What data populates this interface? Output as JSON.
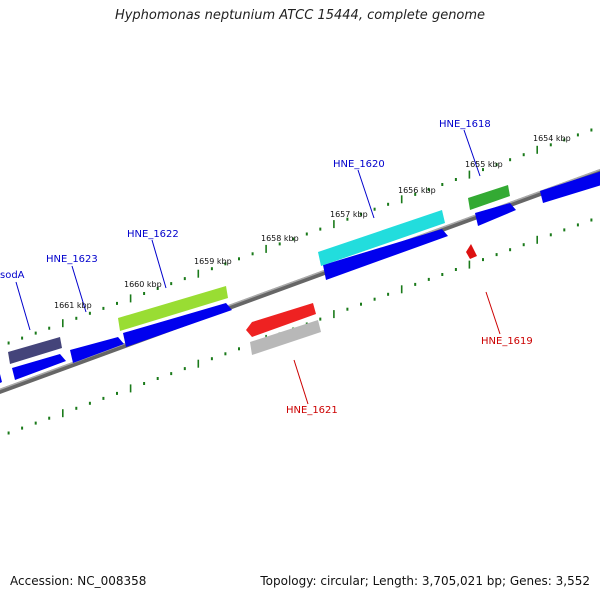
{
  "title": "Hyphomonas neptunium ATCC 15444, complete genome",
  "footer": {
    "accession": "Accession: NC_008358",
    "stats": "Topology: circular; Length: 3,705,021 bp; Genes: 3,552"
  },
  "colors": {
    "backbone": "#808080",
    "scale_ticks": "#1a7a1a",
    "cds": "#0000ee",
    "fwd_label": "#0000cc",
    "rev_label": "#cc0000"
  },
  "scale_labels": [
    {
      "text": "1661 kbp"
    },
    {
      "text": "1660 kbp"
    },
    {
      "text": "1659 kbp"
    },
    {
      "text": "1658 kbp"
    },
    {
      "text": "1657 kbp"
    },
    {
      "text": "1656 kbp"
    },
    {
      "text": "1655 kbp"
    },
    {
      "text": "1654 kbp"
    }
  ],
  "genes_forward": [
    {
      "name": "sodA",
      "color": "#44447a"
    },
    {
      "name": "HNE_1623",
      "color": "#0000ee"
    },
    {
      "name": "HNE_1622",
      "color": "#99dd33"
    },
    {
      "name": "HNE_1620",
      "color": "#22dddd"
    },
    {
      "name": "HNE_1618",
      "color": "#33aa33"
    }
  ],
  "genes_reverse": [
    {
      "name": "HNE_1621",
      "color": "#ee2222"
    },
    {
      "name": "HNE_1619",
      "color": "#dd1111"
    }
  ]
}
